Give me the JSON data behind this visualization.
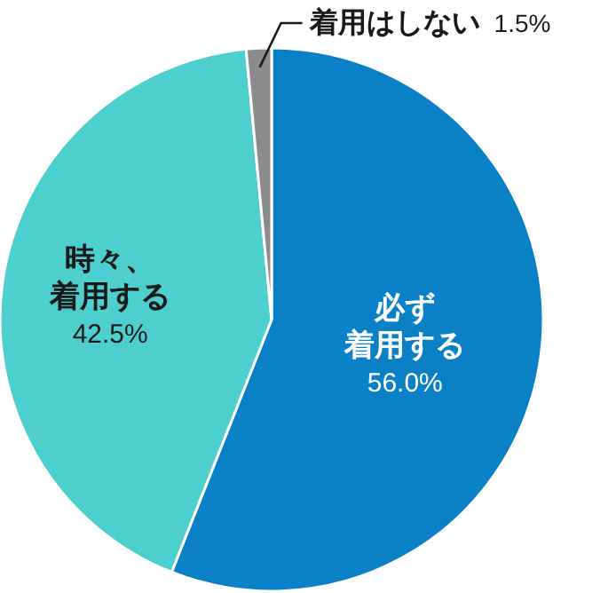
{
  "chart_data": {
    "type": "pie",
    "categories": [
      "必ず着用する",
      "時々、着用する",
      "着用はしない"
    ],
    "values": [
      56.0,
      42.5,
      1.5
    ],
    "value_labels": [
      "56.0%",
      "42.5%",
      "1.5%"
    ],
    "colors": [
      "#0a80c6",
      "#4dcfd0",
      "#8a8c8e"
    ],
    "legend": false
  }
}
